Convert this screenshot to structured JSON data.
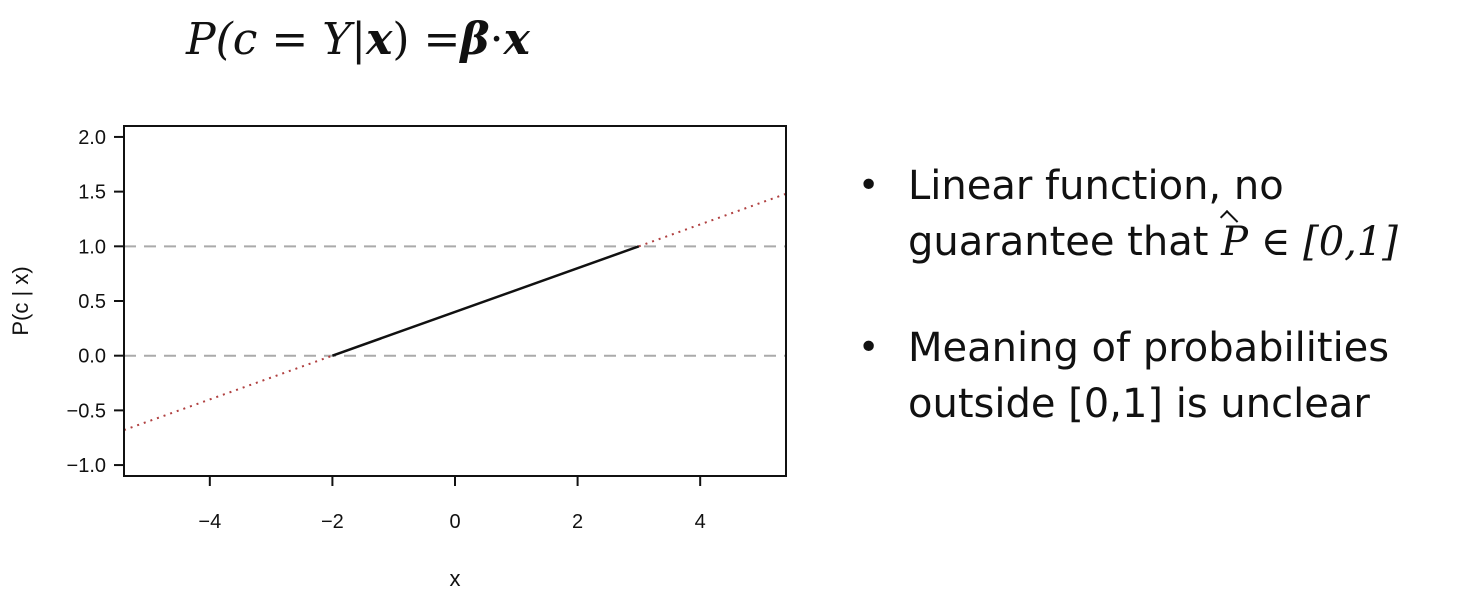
{
  "formula": {
    "text": "P(c = Y|x) = β · x",
    "lhs": "P(c = Y|",
    "x1": "x",
    "rparen": ") = ",
    "beta": "β",
    "dot": " · ",
    "x2": "x"
  },
  "bullets": [
    {
      "line1": "Linear function, no",
      "line2_prefix": "guarantee that ",
      "math_symbol": "P",
      "math_rest": " ∈ [0,1]"
    },
    {
      "line1": "Meaning of probabilities",
      "line2": "outside [0,1] is unclear"
    }
  ],
  "chart_data": {
    "type": "line",
    "xlabel": "x",
    "ylabel": "P(c | x)",
    "xlim": [
      -5.4,
      5.4
    ],
    "ylim": [
      -1.1,
      2.1
    ],
    "xticks": [
      -4,
      -2,
      0,
      2,
      4
    ],
    "xtick_labels": [
      "−4",
      "−2",
      "0",
      "2",
      "4"
    ],
    "yticks": [
      -1.0,
      -0.5,
      0.0,
      0.5,
      1.0,
      1.5,
      2.0
    ],
    "ytick_labels": [
      "−1.0",
      "−0.5",
      "0.0",
      "0.5",
      "1.0",
      "1.5",
      "2.0"
    ],
    "reference_lines": [
      0.0,
      1.0
    ],
    "series": [
      {
        "style": "solid",
        "color": "#111111",
        "x": [
          -2,
          3
        ],
        "y": [
          0.0,
          1.0
        ]
      },
      {
        "style": "dotted",
        "color": "#b04040",
        "x": [
          -5.4,
          -2
        ],
        "y": [
          -0.68,
          0.0
        ]
      },
      {
        "style": "dotted",
        "color": "#b04040",
        "x": [
          3,
          5.4
        ],
        "y": [
          1.0,
          1.48
        ]
      }
    ],
    "grid": false,
    "colors": {
      "axis": "#111111",
      "reference": "#aaaaaa",
      "solid": "#111111",
      "dotted": "#b04040"
    }
  }
}
